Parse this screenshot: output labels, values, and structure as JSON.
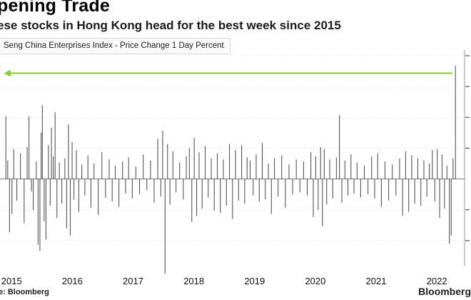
{
  "header": {
    "title": "pening Trade",
    "subtitle": "ese stocks in Hong Kong head for the best week since 2015"
  },
  "legend": {
    "label": "Seng China Enterprises Index - Price Change 1 Day Percent"
  },
  "footer": {
    "source": "e: Bloomberg",
    "brand": "Bloomberg"
  },
  "colors": {
    "bar": "#555555",
    "arrow": "#7ed321",
    "grid": "#d0d0d0",
    "axis": "#9a9a9a"
  },
  "chart_data": {
    "type": "bar",
    "title": "pening Trade",
    "subtitle": "ese stocks in Hong Kong head for the best week since 2015",
    "xlabel": "",
    "ylabel": "",
    "x_range": [
      2014.95,
      2022.55
    ],
    "ylim": [
      -9,
      12
    ],
    "grid": true,
    "x_ticks": [
      {
        "label": "2015",
        "value": 2015
      },
      {
        "label": "2016",
        "value": 2016
      },
      {
        "label": "2017",
        "value": 2017
      },
      {
        "label": "2018",
        "value": 2018
      },
      {
        "label": "2019",
        "value": 2019
      },
      {
        "label": "2020",
        "value": 2020
      },
      {
        "label": "2021",
        "value": 2021
      },
      {
        "label": "2022",
        "value": 2022
      }
    ],
    "annotation": {
      "type": "arrow",
      "direction": "left",
      "y_value": 10.3,
      "from_x": 2022.35,
      "to_x": 2014.97
    },
    "series": [
      {
        "name": "Seng China Enterprises Index - Price Change 1 Day Percent",
        "points": [
          {
            "x": 2015.0,
            "v": 6.1
          },
          {
            "x": 2015.03,
            "v": 1.8
          },
          {
            "x": 2015.06,
            "v": -5.2
          },
          {
            "x": 2015.1,
            "v": -3.4
          },
          {
            "x": 2015.13,
            "v": 2.9
          },
          {
            "x": 2015.18,
            "v": -2.1
          },
          {
            "x": 2015.24,
            "v": 2.5
          },
          {
            "x": 2015.3,
            "v": -4.3
          },
          {
            "x": 2015.35,
            "v": 3.1
          },
          {
            "x": 2015.38,
            "v": 6.1
          },
          {
            "x": 2015.42,
            "v": -1.2
          },
          {
            "x": 2015.45,
            "v": -3.0
          },
          {
            "x": 2015.5,
            "v": 1.7
          },
          {
            "x": 2015.53,
            "v": -6.4
          },
          {
            "x": 2015.56,
            "v": -7.0
          },
          {
            "x": 2015.58,
            "v": 4.5
          },
          {
            "x": 2015.6,
            "v": 7.2
          },
          {
            "x": 2015.63,
            "v": -4.1
          },
          {
            "x": 2015.66,
            "v": -5.9
          },
          {
            "x": 2015.7,
            "v": 3.3
          },
          {
            "x": 2015.73,
            "v": -2.6
          },
          {
            "x": 2015.75,
            "v": 5.0
          },
          {
            "x": 2015.78,
            "v": 2.2
          },
          {
            "x": 2015.81,
            "v": 6.5
          },
          {
            "x": 2015.84,
            "v": -3.8
          },
          {
            "x": 2015.88,
            "v": 1.6
          },
          {
            "x": 2015.92,
            "v": -2.4
          },
          {
            "x": 2015.97,
            "v": 2.0
          },
          {
            "x": 2016.0,
            "v": -4.8
          },
          {
            "x": 2016.03,
            "v": 5.3
          },
          {
            "x": 2016.06,
            "v": -5.5
          },
          {
            "x": 2016.09,
            "v": 3.6
          },
          {
            "x": 2016.12,
            "v": -2.0
          },
          {
            "x": 2016.16,
            "v": 2.8
          },
          {
            "x": 2016.2,
            "v": -3.2
          },
          {
            "x": 2016.25,
            "v": 1.4
          },
          {
            "x": 2016.3,
            "v": -1.6
          },
          {
            "x": 2016.35,
            "v": 2.3
          },
          {
            "x": 2016.4,
            "v": -2.8
          },
          {
            "x": 2016.45,
            "v": 1.5
          },
          {
            "x": 2016.52,
            "v": -3.5
          },
          {
            "x": 2016.58,
            "v": 2.6
          },
          {
            "x": 2016.64,
            "v": -1.8
          },
          {
            "x": 2016.7,
            "v": 1.9
          },
          {
            "x": 2016.75,
            "v": -2.2
          },
          {
            "x": 2016.8,
            "v": 1.3
          },
          {
            "x": 2016.86,
            "v": -2.7
          },
          {
            "x": 2016.92,
            "v": 1.7
          },
          {
            "x": 2016.97,
            "v": -1.4
          },
          {
            "x": 2017.02,
            "v": 2.1
          },
          {
            "x": 2017.08,
            "v": -1.9
          },
          {
            "x": 2017.14,
            "v": 1.2
          },
          {
            "x": 2017.2,
            "v": -1.5
          },
          {
            "x": 2017.26,
            "v": 2.4
          },
          {
            "x": 2017.32,
            "v": -1.1
          },
          {
            "x": 2017.38,
            "v": 1.8
          },
          {
            "x": 2017.44,
            "v": -2.3
          },
          {
            "x": 2017.5,
            "v": 3.9
          },
          {
            "x": 2017.55,
            "v": -1.7
          },
          {
            "x": 2017.58,
            "v": 4.7
          },
          {
            "x": 2017.62,
            "v": -9.2
          },
          {
            "x": 2017.66,
            "v": 3.4
          },
          {
            "x": 2017.7,
            "v": -2.5
          },
          {
            "x": 2017.75,
            "v": 2.7
          },
          {
            "x": 2017.8,
            "v": -1.3
          },
          {
            "x": 2017.86,
            "v": 1.6
          },
          {
            "x": 2017.92,
            "v": -2.0
          },
          {
            "x": 2017.97,
            "v": 2.2
          },
          {
            "x": 2018.02,
            "v": 3.0
          },
          {
            "x": 2018.06,
            "v": -4.2
          },
          {
            "x": 2018.1,
            "v": 4.0
          },
          {
            "x": 2018.14,
            "v": -3.6
          },
          {
            "x": 2018.18,
            "v": 2.6
          },
          {
            "x": 2018.23,
            "v": -2.9
          },
          {
            "x": 2018.28,
            "v": 3.2
          },
          {
            "x": 2018.33,
            "v": -1.8
          },
          {
            "x": 2018.38,
            "v": 2.0
          },
          {
            "x": 2018.43,
            "v": -3.1
          },
          {
            "x": 2018.48,
            "v": 2.5
          },
          {
            "x": 2018.53,
            "v": -3.3
          },
          {
            "x": 2018.58,
            "v": 1.9
          },
          {
            "x": 2018.63,
            "v": -2.6
          },
          {
            "x": 2018.68,
            "v": 3.4
          },
          {
            "x": 2018.73,
            "v": -3.9
          },
          {
            "x": 2018.78,
            "v": 2.8
          },
          {
            "x": 2018.83,
            "v": -2.1
          },
          {
            "x": 2018.88,
            "v": 3.3
          },
          {
            "x": 2018.93,
            "v": -2.4
          },
          {
            "x": 2018.97,
            "v": 2.1
          },
          {
            "x": 2019.02,
            "v": 1.8
          },
          {
            "x": 2019.07,
            "v": -1.6
          },
          {
            "x": 2019.12,
            "v": 2.4
          },
          {
            "x": 2019.17,
            "v": -2.2
          },
          {
            "x": 2019.22,
            "v": 3.5
          },
          {
            "x": 2019.27,
            "v": -2.0
          },
          {
            "x": 2019.32,
            "v": 1.5
          },
          {
            "x": 2019.37,
            "v": -3.4
          },
          {
            "x": 2019.42,
            "v": 2.0
          },
          {
            "x": 2019.48,
            "v": -1.7
          },
          {
            "x": 2019.54,
            "v": 2.3
          },
          {
            "x": 2019.6,
            "v": -2.8
          },
          {
            "x": 2019.66,
            "v": 1.4
          },
          {
            "x": 2019.72,
            "v": -1.5
          },
          {
            "x": 2019.78,
            "v": 1.9
          },
          {
            "x": 2019.84,
            "v": -1.3
          },
          {
            "x": 2019.9,
            "v": 1.7
          },
          {
            "x": 2019.96,
            "v": -1.6
          },
          {
            "x": 2020.02,
            "v": 2.6
          },
          {
            "x": 2020.06,
            "v": -3.7
          },
          {
            "x": 2020.1,
            "v": 2.2
          },
          {
            "x": 2020.14,
            "v": -3.0
          },
          {
            "x": 2020.18,
            "v": 3.1
          },
          {
            "x": 2020.21,
            "v": -4.6
          },
          {
            "x": 2020.24,
            "v": 2.9
          },
          {
            "x": 2020.28,
            "v": -2.5
          },
          {
            "x": 2020.33,
            "v": 1.9
          },
          {
            "x": 2020.38,
            "v": -1.9
          },
          {
            "x": 2020.44,
            "v": 2.1
          },
          {
            "x": 2020.49,
            "v": 6.2
          },
          {
            "x": 2020.53,
            "v": -2.3
          },
          {
            "x": 2020.58,
            "v": 1.8
          },
          {
            "x": 2020.63,
            "v": -1.6
          },
          {
            "x": 2020.68,
            "v": 2.4
          },
          {
            "x": 2020.73,
            "v": -1.4
          },
          {
            "x": 2020.78,
            "v": 1.6
          },
          {
            "x": 2020.84,
            "v": -1.8
          },
          {
            "x": 2020.9,
            "v": 1.3
          },
          {
            "x": 2020.96,
            "v": -1.5
          },
          {
            "x": 2021.02,
            "v": 2.2
          },
          {
            "x": 2021.07,
            "v": -1.9
          },
          {
            "x": 2021.12,
            "v": 2.5
          },
          {
            "x": 2021.18,
            "v": -2.7
          },
          {
            "x": 2021.24,
            "v": 1.7
          },
          {
            "x": 2021.3,
            "v": -2.1
          },
          {
            "x": 2021.36,
            "v": 1.4
          },
          {
            "x": 2021.42,
            "v": -1.6
          },
          {
            "x": 2021.48,
            "v": 2.0
          },
          {
            "x": 2021.53,
            "v": -3.6
          },
          {
            "x": 2021.58,
            "v": 2.7
          },
          {
            "x": 2021.63,
            "v": -3.2
          },
          {
            "x": 2021.68,
            "v": 2.3
          },
          {
            "x": 2021.73,
            "v": -2.4
          },
          {
            "x": 2021.78,
            "v": 2.0
          },
          {
            "x": 2021.83,
            "v": -2.6
          },
          {
            "x": 2021.88,
            "v": 1.8
          },
          {
            "x": 2021.93,
            "v": -1.7
          },
          {
            "x": 2021.97,
            "v": 1.5
          },
          {
            "x": 2022.02,
            "v": 2.8
          },
          {
            "x": 2022.06,
            "v": -2.2
          },
          {
            "x": 2022.1,
            "v": 2.9
          },
          {
            "x": 2022.14,
            "v": -3.8
          },
          {
            "x": 2022.18,
            "v": 2.4
          },
          {
            "x": 2022.22,
            "v": -2.9
          },
          {
            "x": 2022.26,
            "v": 1.3
          },
          {
            "x": 2022.3,
            "v": -6.3
          },
          {
            "x": 2022.33,
            "v": -5.5
          },
          {
            "x": 2022.36,
            "v": 2.0
          },
          {
            "x": 2022.4,
            "v": 11.0
          }
        ]
      }
    ]
  }
}
